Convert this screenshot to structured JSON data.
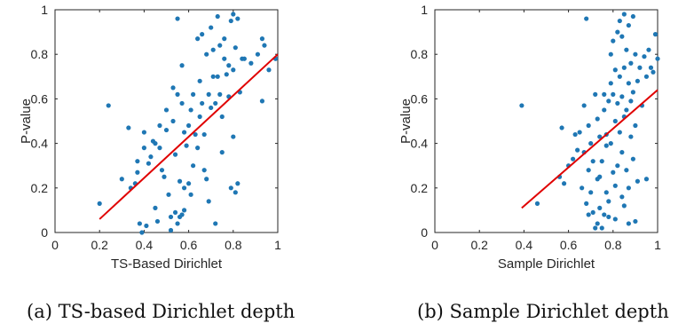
{
  "chart_data": [
    {
      "type": "scatter",
      "xlabel": "TS-Based Dirichlet",
      "ylabel": "P-value",
      "xlim": [
        0,
        1
      ],
      "ylim": [
        0,
        1
      ],
      "xticks": [
        "0",
        "0.2",
        "0.4",
        "0.6",
        "0.8",
        "1"
      ],
      "yticks": [
        "0",
        "0.2",
        "0.4",
        "0.6",
        "0.8",
        "1"
      ],
      "caption": "(a) TS-based Dirichlet depth",
      "point_color": "#1f77b4",
      "fit_color": "#e00000",
      "fit_line": {
        "x": [
          0.2,
          1.0
        ],
        "y": [
          0.06,
          0.8
        ]
      },
      "points": [
        [
          0.2,
          0.13
        ],
        [
          0.24,
          0.57
        ],
        [
          0.3,
          0.24
        ],
        [
          0.33,
          0.47
        ],
        [
          0.34,
          0.2
        ],
        [
          0.36,
          0.22
        ],
        [
          0.37,
          0.27
        ],
        [
          0.37,
          0.32
        ],
        [
          0.38,
          0.04
        ],
        [
          0.39,
          0.0
        ],
        [
          0.4,
          0.45
        ],
        [
          0.4,
          0.38
        ],
        [
          0.41,
          0.03
        ],
        [
          0.42,
          0.31
        ],
        [
          0.43,
          0.34
        ],
        [
          0.44,
          0.41
        ],
        [
          0.45,
          0.11
        ],
        [
          0.45,
          0.4
        ],
        [
          0.46,
          0.05
        ],
        [
          0.47,
          0.48
        ],
        [
          0.47,
          0.38
        ],
        [
          0.48,
          0.28
        ],
        [
          0.49,
          0.25
        ],
        [
          0.5,
          0.55
        ],
        [
          0.5,
          0.46
        ],
        [
          0.51,
          0.17
        ],
        [
          0.52,
          0.01
        ],
        [
          0.52,
          0.07
        ],
        [
          0.53,
          0.65
        ],
        [
          0.53,
          0.5
        ],
        [
          0.54,
          0.35
        ],
        [
          0.54,
          0.09
        ],
        [
          0.55,
          0.96
        ],
        [
          0.55,
          0.62
        ],
        [
          0.55,
          0.04
        ],
        [
          0.56,
          0.23
        ],
        [
          0.56,
          0.07
        ],
        [
          0.57,
          0.75
        ],
        [
          0.57,
          0.58
        ],
        [
          0.57,
          0.08
        ],
        [
          0.58,
          0.45
        ],
        [
          0.58,
          0.2
        ],
        [
          0.58,
          0.1
        ],
        [
          0.59,
          0.39
        ],
        [
          0.6,
          0.48
        ],
        [
          0.6,
          0.22
        ],
        [
          0.61,
          0.55
        ],
        [
          0.61,
          0.17
        ],
        [
          0.62,
          0.62
        ],
        [
          0.62,
          0.3
        ],
        [
          0.63,
          0.44
        ],
        [
          0.64,
          0.38
        ],
        [
          0.64,
          0.87
        ],
        [
          0.65,
          0.68
        ],
        [
          0.65,
          0.52
        ],
        [
          0.66,
          0.89
        ],
        [
          0.66,
          0.58
        ],
        [
          0.67,
          0.44
        ],
        [
          0.67,
          0.28
        ],
        [
          0.68,
          0.8
        ],
        [
          0.68,
          0.24
        ],
        [
          0.69,
          0.62
        ],
        [
          0.69,
          0.14
        ],
        [
          0.7,
          0.92
        ],
        [
          0.7,
          0.56
        ],
        [
          0.71,
          0.82
        ],
        [
          0.71,
          0.7
        ],
        [
          0.72,
          0.58
        ],
        [
          0.72,
          0.04
        ],
        [
          0.73,
          0.97
        ],
        [
          0.73,
          0.7
        ],
        [
          0.74,
          0.84
        ],
        [
          0.74,
          0.62
        ],
        [
          0.75,
          0.52
        ],
        [
          0.75,
          0.36
        ],
        [
          0.76,
          0.87
        ],
        [
          0.76,
          0.78
        ],
        [
          0.77,
          0.71
        ],
        [
          0.78,
          0.61
        ],
        [
          0.78,
          0.75
        ],
        [
          0.79,
          0.95
        ],
        [
          0.79,
          0.2
        ],
        [
          0.8,
          0.98
        ],
        [
          0.8,
          0.73
        ],
        [
          0.8,
          0.43
        ],
        [
          0.81,
          0.83
        ],
        [
          0.81,
          0.18
        ],
        [
          0.82,
          0.96
        ],
        [
          0.82,
          0.22
        ],
        [
          0.83,
          0.63
        ],
        [
          0.84,
          0.78
        ],
        [
          0.85,
          0.78
        ],
        [
          0.88,
          0.76
        ],
        [
          0.91,
          0.8
        ],
        [
          0.93,
          0.87
        ],
        [
          0.93,
          0.59
        ],
        [
          0.94,
          0.84
        ],
        [
          0.96,
          0.73
        ],
        [
          0.99,
          0.78
        ]
      ]
    },
    {
      "type": "scatter",
      "xlabel": "Sample Dirichlet",
      "ylabel": "P-value",
      "xlim": [
        0,
        1
      ],
      "ylim": [
        0,
        1
      ],
      "xticks": [
        "0",
        "0.2",
        "0.4",
        "0.6",
        "0.8",
        "1"
      ],
      "yticks": [
        "0",
        "0.2",
        "0.4",
        "0.6",
        "0.8",
        "1"
      ],
      "caption": "(b) Sample Dirichlet depth",
      "point_color": "#1f77b4",
      "fit_color": "#e00000",
      "fit_line": {
        "x": [
          0.39,
          1.0
        ],
        "y": [
          0.11,
          0.64
        ]
      },
      "points": [
        [
          0.39,
          0.57
        ],
        [
          0.46,
          0.13
        ],
        [
          0.56,
          0.25
        ],
        [
          0.57,
          0.47
        ],
        [
          0.58,
          0.22
        ],
        [
          0.6,
          0.3
        ],
        [
          0.62,
          0.33
        ],
        [
          0.63,
          0.44
        ],
        [
          0.64,
          0.37
        ],
        [
          0.65,
          0.45
        ],
        [
          0.66,
          0.2
        ],
        [
          0.67,
          0.36
        ],
        [
          0.67,
          0.57
        ],
        [
          0.68,
          0.96
        ],
        [
          0.68,
          0.13
        ],
        [
          0.69,
          0.48
        ],
        [
          0.69,
          0.28
        ],
        [
          0.69,
          0.08
        ],
        [
          0.7,
          0.18
        ],
        [
          0.7,
          0.4
        ],
        [
          0.71,
          0.32
        ],
        [
          0.71,
          0.09
        ],
        [
          0.72,
          0.62
        ],
        [
          0.72,
          0.02
        ],
        [
          0.73,
          0.51
        ],
        [
          0.73,
          0.24
        ],
        [
          0.73,
          0.04
        ],
        [
          0.74,
          0.43
        ],
        [
          0.74,
          0.11
        ],
        [
          0.74,
          0.25
        ],
        [
          0.75,
          0.32
        ],
        [
          0.75,
          0.02
        ],
        [
          0.76,
          0.62
        ],
        [
          0.76,
          0.55
        ],
        [
          0.76,
          0.08
        ],
        [
          0.77,
          0.39
        ],
        [
          0.77,
          0.18
        ],
        [
          0.77,
          0.44
        ],
        [
          0.78,
          0.59
        ],
        [
          0.78,
          0.07
        ],
        [
          0.78,
          0.14
        ],
        [
          0.79,
          0.8
        ],
        [
          0.79,
          0.67
        ],
        [
          0.79,
          0.4
        ],
        [
          0.8,
          0.86
        ],
        [
          0.8,
          0.62
        ],
        [
          0.8,
          0.27
        ],
        [
          0.81,
          0.73
        ],
        [
          0.81,
          0.5
        ],
        [
          0.81,
          0.21
        ],
        [
          0.81,
          0.06
        ],
        [
          0.82,
          0.9
        ],
        [
          0.82,
          0.58
        ],
        [
          0.82,
          0.3
        ],
        [
          0.83,
          0.95
        ],
        [
          0.83,
          0.7
        ],
        [
          0.83,
          0.45
        ],
        [
          0.84,
          0.88
        ],
        [
          0.84,
          0.61
        ],
        [
          0.84,
          0.36
        ],
        [
          0.84,
          0.16
        ],
        [
          0.85,
          0.98
        ],
        [
          0.85,
          0.74
        ],
        [
          0.85,
          0.52
        ],
        [
          0.85,
          0.12
        ],
        [
          0.86,
          0.82
        ],
        [
          0.86,
          0.55
        ],
        [
          0.86,
          0.28
        ],
        [
          0.87,
          0.93
        ],
        [
          0.87,
          0.67
        ],
        [
          0.87,
          0.2
        ],
        [
          0.87,
          0.04
        ],
        [
          0.88,
          0.76
        ],
        [
          0.88,
          0.59
        ],
        [
          0.88,
          0.43
        ],
        [
          0.89,
          0.97
        ],
        [
          0.89,
          0.63
        ],
        [
          0.89,
          0.33
        ],
        [
          0.9,
          0.8
        ],
        [
          0.9,
          0.48
        ],
        [
          0.9,
          0.05
        ],
        [
          0.91,
          0.68
        ],
        [
          0.91,
          0.23
        ],
        [
          0.92,
          0.74
        ],
        [
          0.93,
          0.57
        ],
        [
          0.94,
          0.79
        ],
        [
          0.95,
          0.7
        ],
        [
          0.95,
          0.24
        ],
        [
          0.96,
          0.82
        ],
        [
          0.97,
          0.74
        ],
        [
          0.98,
          0.72
        ],
        [
          0.99,
          0.89
        ],
        [
          1.0,
          0.78
        ]
      ]
    }
  ]
}
